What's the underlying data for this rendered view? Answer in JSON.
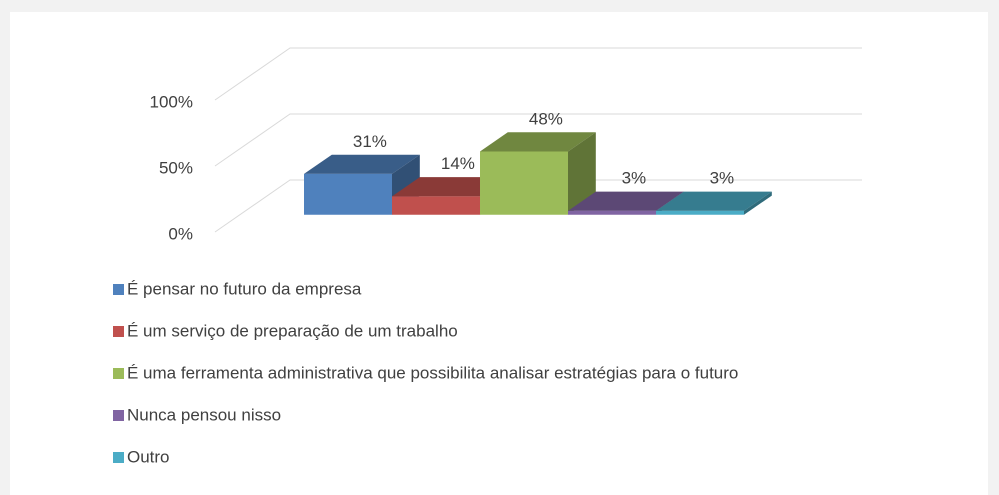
{
  "chart_data": {
    "type": "bar3d",
    "series": [
      {
        "name": "É pensar no futuro da empresa",
        "color": "#4f81bd",
        "values": [
          31
        ],
        "value_labels": [
          "31%"
        ]
      },
      {
        "name": "É um serviço de preparação de um trabalho",
        "color": "#c0504d",
        "values": [
          14
        ],
        "value_labels": [
          "14%"
        ]
      },
      {
        "name": "É uma ferramenta administrativa que possibilita analisar estratégias para o futuro",
        "color": "#9bbb59",
        "values": [
          48
        ],
        "value_labels": [
          "48%"
        ]
      },
      {
        "name": "Nunca pensou nisso",
        "color": "#8064a2",
        "values": [
          3
        ],
        "value_labels": [
          "3%"
        ]
      },
      {
        "name": "Outro",
        "color": "#4bacc6",
        "values": [
          3
        ],
        "value_labels": [
          "3%"
        ]
      }
    ],
    "ylim": [
      0,
      100
    ],
    "yticks": [
      {
        "value": 0,
        "label": "0%"
      },
      {
        "value": 50,
        "label": "50%"
      },
      {
        "value": 100,
        "label": "100%"
      }
    ],
    "grid": true,
    "legend": "bottom"
  }
}
